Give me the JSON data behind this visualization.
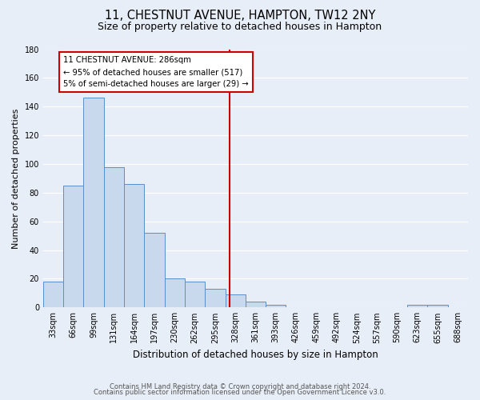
{
  "title": "11, CHESTNUT AVENUE, HAMPTON, TW12 2NY",
  "subtitle": "Size of property relative to detached houses in Hampton",
  "xlabel": "Distribution of detached houses by size in Hampton",
  "ylabel": "Number of detached properties",
  "bar_labels": [
    "33sqm",
    "66sqm",
    "99sqm",
    "131sqm",
    "164sqm",
    "197sqm",
    "230sqm",
    "262sqm",
    "295sqm",
    "328sqm",
    "361sqm",
    "393sqm",
    "426sqm",
    "459sqm",
    "492sqm",
    "524sqm",
    "557sqm",
    "590sqm",
    "623sqm",
    "655sqm",
    "688sqm"
  ],
  "bar_values": [
    18,
    85,
    146,
    98,
    86,
    52,
    20,
    18,
    13,
    9,
    4,
    2,
    0,
    0,
    0,
    0,
    0,
    0,
    2,
    2,
    0
  ],
  "bar_color": "#c9d9ed",
  "bar_edge_color": "#5b8fc7",
  "background_color": "#e8eef7",
  "grid_color": "#ffffff",
  "vline_x_index": 8.73,
  "annotation_line1": "11 CHESTNUT AVENUE: 286sqm",
  "annotation_line2": "← 95% of detached houses are smaller (517)",
  "annotation_line3": "5% of semi-detached houses are larger (29) →",
  "annotation_box_color": "#ffffff",
  "annotation_box_edge_color": "#cc0000",
  "vline_color": "#cc0000",
  "ylim": [
    0,
    180
  ],
  "yticks": [
    0,
    20,
    40,
    60,
    80,
    100,
    120,
    140,
    160,
    180
  ],
  "footer_line1": "Contains HM Land Registry data © Crown copyright and database right 2024.",
  "footer_line2": "Contains public sector information licensed under the Open Government Licence v3.0."
}
